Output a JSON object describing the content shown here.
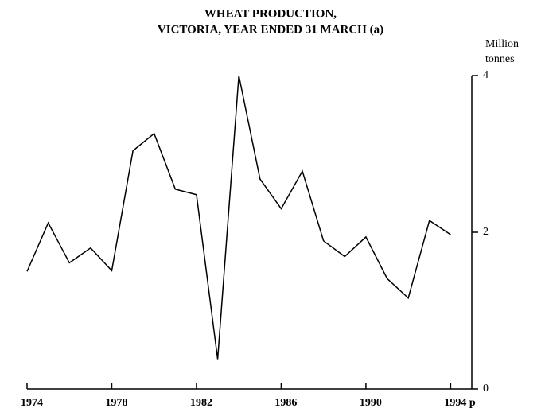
{
  "chart_data": {
    "type": "line",
    "title": [
      "WHEAT PRODUCTION,",
      "VICTORIA, YEAR ENDED 31 MARCH (a)"
    ],
    "ylabel": [
      "Million",
      "tonnes"
    ],
    "x": [
      1974,
      1975,
      1976,
      1977,
      1978,
      1979,
      1980,
      1981,
      1982,
      1983,
      1984,
      1985,
      1986,
      1987,
      1988,
      1989,
      1990,
      1991,
      1992,
      1993,
      1994
    ],
    "series": [
      {
        "name": "Wheat production",
        "color": "#000000",
        "values": [
          1.5,
          2.12,
          1.61,
          1.8,
          1.51,
          3.04,
          3.26,
          2.55,
          2.48,
          0.38,
          4.0,
          2.68,
          2.3,
          2.78,
          1.89,
          1.69,
          1.94,
          1.41,
          1.16,
          2.15,
          1.97
        ]
      }
    ],
    "xlim": [
      1974,
      1995
    ],
    "xticks": [
      1974,
      1978,
      1982,
      1986,
      1990,
      {
        "value": 1994,
        "label": "1994 p"
      }
    ],
    "ylim": [
      0,
      4
    ],
    "yticks": [
      0,
      2,
      4
    ],
    "yaxis_side": "right",
    "grid": false
  }
}
